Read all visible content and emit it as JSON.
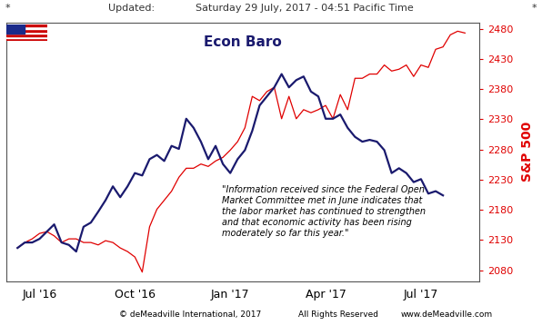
{
  "header": {
    "left_mark": "*",
    "updated": "Updated:",
    "timestamp": "Saturday 29 July, 2017 - 04:51 Pacific Time",
    "right_mark": "*"
  },
  "footer": {
    "copyright": "© deMeadville International, 2017",
    "rights": "All Rights Reserved",
    "website": "www.deMeadville.com"
  },
  "chart_data": {
    "type": "line",
    "title": "Econ Baro",
    "y_label": "S&P 500",
    "annotation": "\"Information received since the Federal Open\nMarket Committee met in June indicates that\nthe labor market has continued to strengthen\nand that economic activity has been rising\nmoderately so far this year.\"",
    "categories": [
      null,
      null,
      null,
      "Jul '16",
      null,
      null,
      null,
      null,
      null,
      null,
      null,
      null,
      null,
      null,
      null,
      null,
      "Oct '16",
      null,
      null,
      null,
      null,
      null,
      null,
      null,
      null,
      null,
      null,
      null,
      null,
      "Jan '17",
      null,
      null,
      null,
      null,
      null,
      null,
      null,
      null,
      null,
      null,
      null,
      null,
      "Apr '17",
      null,
      null,
      null,
      null,
      null,
      null,
      null,
      null,
      null,
      null,
      null,
      null,
      "Jul '17",
      null,
      null,
      null,
      null,
      null,
      null
    ],
    "series": [
      {
        "name": "Econ Baro",
        "color": "#1a1a6e",
        "values": [
          2117,
          2126,
          2126,
          2132,
          2144,
          2156,
          2126,
          2122,
          2111,
          2152,
          2159,
          2177,
          2196,
          2219,
          2201,
          2219,
          2241,
          2237,
          2264,
          2271,
          2261,
          2286,
          2281,
          2331,
          2316,
          2293,
          2264,
          2286,
          2256,
          2241,
          2264,
          2279,
          2311,
          2353,
          2368,
          2383,
          2405,
          2383,
          2395,
          2401,
          2376,
          2368,
          2331,
          2331,
          2338,
          2316,
          2301,
          2293,
          2296,
          2293,
          2279,
          2241,
          2249,
          2241,
          2226,
          2231,
          2207,
          2211,
          2204,
          null,
          null,
          null
        ]
      },
      {
        "name": "S&P 500",
        "color": "#e00000",
        "values": [
          2117,
          2126,
          2132,
          2141,
          2144,
          2137,
          2126,
          2132,
          2132,
          2126,
          2126,
          2122,
          2129,
          2126,
          2117,
          2111,
          2102,
          2077,
          2152,
          2181,
          2196,
          2211,
          2234,
          2249,
          2249,
          2256,
          2252,
          2261,
          2267,
          2279,
          2293,
          2316,
          2368,
          2361,
          2376,
          2383,
          2331,
          2368,
          2331,
          2346,
          2341,
          2346,
          2353,
          2331,
          2371,
          2346,
          2398,
          2398,
          2405,
          2405,
          2420,
          2410,
          2413,
          2420,
          2401,
          2420,
          2416,
          2446,
          2450,
          2470,
          2476,
          2473
        ]
      }
    ],
    "ylim": [
      2062,
      2490
    ],
    "yticks": [
      2080,
      2130,
      2180,
      2230,
      2280,
      2330,
      2380,
      2430,
      2480
    ],
    "grid": false
  }
}
